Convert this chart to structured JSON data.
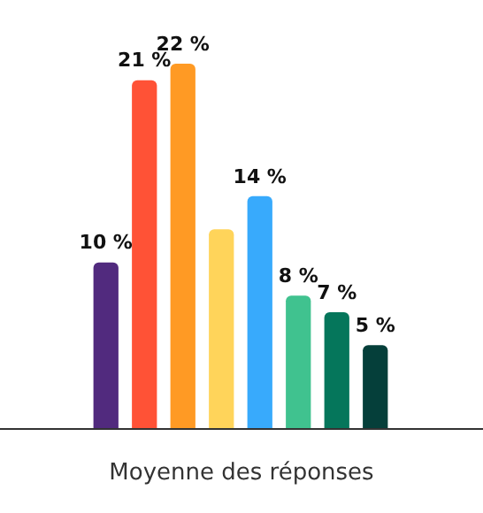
{
  "chart_data": {
    "type": "bar",
    "xlabel": "Moyenne des réponses",
    "categories": [
      null,
      null,
      null,
      null,
      null,
      null,
      null,
      null
    ],
    "values": [
      10,
      21,
      22,
      12,
      14,
      8,
      7,
      5
    ],
    "colors": [
      "#512a7e",
      "#ff5236",
      "#ff9a24",
      "#ffd45a",
      "#38aafc",
      "#40c28f",
      "#05765b",
      "#053f3a"
    ],
    "value_labels": [
      "10 %",
      "21 %",
      "22 %",
      null,
      "14 %",
      "8 %",
      "7 %",
      "5 %"
    ]
  }
}
